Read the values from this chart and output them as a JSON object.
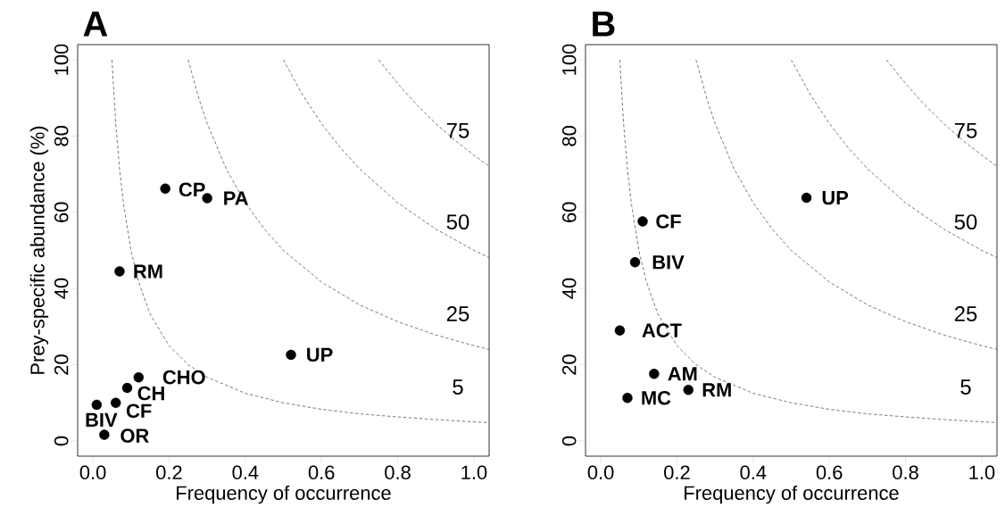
{
  "chart_data": [
    {
      "type": "scatter",
      "title": "A",
      "xlabel": "Frequency of occurrence",
      "ylabel": "Prey-specific abundance (%)",
      "xlim": [
        -0.04,
        1.04
      ],
      "ylim": [
        -4,
        104
      ],
      "xticks": [
        {
          "value": 0,
          "label": "0.0"
        },
        {
          "value": 0.2,
          "label": "0.2"
        },
        {
          "value": 0.4,
          "label": "0.4"
        },
        {
          "value": 0.6,
          "label": "0.6"
        },
        {
          "value": 0.8,
          "label": "0.8"
        },
        {
          "value": 1,
          "label": "1.0"
        }
      ],
      "yticks": [
        0,
        20,
        40,
        60,
        80,
        100
      ],
      "series": [
        {
          "name": "5",
          "type": "line",
          "line_style": "dashed",
          "color": "#404040",
          "x": [
            0.05,
            0.06,
            0.07,
            0.08,
            0.1,
            0.12,
            0.15,
            0.2,
            0.25,
            0.3,
            0.4,
            0.5,
            0.6,
            0.7,
            0.8,
            0.9,
            1.0,
            1.04
          ],
          "values": [
            100,
            83.3,
            71.4,
            62.5,
            50,
            41.7,
            33.3,
            25,
            20,
            16.7,
            12.5,
            10,
            8.3,
            7.1,
            6.3,
            5.6,
            5,
            4.8
          ]
        },
        {
          "name": "25",
          "type": "line",
          "line_style": "dashed",
          "color": "#404040",
          "x": [
            0.25,
            0.28,
            0.3,
            0.35,
            0.4,
            0.45,
            0.5,
            0.6,
            0.7,
            0.8,
            0.9,
            1.0,
            1.04
          ],
          "values": [
            100,
            89.3,
            83.3,
            71.4,
            62.5,
            55.6,
            50,
            41.7,
            35.7,
            31.3,
            27.8,
            25,
            24.0
          ]
        },
        {
          "name": "50",
          "type": "line",
          "line_style": "dashed",
          "color": "#404040",
          "x": [
            0.5,
            0.55,
            0.6,
            0.65,
            0.7,
            0.8,
            0.9,
            1.0,
            1.04
          ],
          "values": [
            100,
            90.9,
            83.3,
            76.9,
            71.4,
            62.5,
            55.6,
            50,
            48.1
          ]
        },
        {
          "name": "75",
          "type": "line",
          "line_style": "dashed",
          "color": "#404040",
          "x": [
            0.75,
            0.8,
            0.85,
            0.9,
            0.95,
            1.0,
            1.04
          ],
          "values": [
            100,
            93.8,
            88.2,
            83.3,
            78.9,
            75,
            72.1
          ]
        },
        {
          "marker": "circle",
          "color": "#000000",
          "x": [
            0.19,
            0.3,
            0.07,
            0.52,
            0.12,
            0.09,
            0.06,
            0.01,
            0.03
          ],
          "values": [
            66.2,
            63.7,
            44.5,
            22.6,
            16.7,
            13.9,
            10.0,
            9.5,
            1.6
          ]
        }
      ],
      "annotations": [
        {
          "text": "CP",
          "x": 0.19,
          "y": 66.2
        },
        {
          "text": "PA",
          "x": 0.3,
          "y": 63.7
        },
        {
          "text": "RM",
          "x": 0.07,
          "y": 44.5
        },
        {
          "text": "UP",
          "x": 0.52,
          "y": 22.6
        },
        {
          "text": "CHO",
          "x": 0.12,
          "y": 16.7
        },
        {
          "text": "CH",
          "x": 0.09,
          "y": 13.9
        },
        {
          "text": "CF",
          "x": 0.06,
          "y": 10.0
        },
        {
          "text": "BIV",
          "x": 0.01,
          "y": 9.5
        },
        {
          "text": "OR",
          "x": 0.03,
          "y": 1.6
        }
      ]
    },
    {
      "type": "scatter",
      "title": "B",
      "xlabel": "Frequency of occurrence",
      "xlim": [
        -0.04,
        1.04
      ],
      "ylim": [
        -4,
        104
      ],
      "xticks": [
        {
          "value": 0,
          "label": "0.0"
        },
        {
          "value": 0.2,
          "label": "0.2"
        },
        {
          "value": 0.4,
          "label": "0.4"
        },
        {
          "value": 0.6,
          "label": "0.6"
        },
        {
          "value": 0.8,
          "label": "0.8"
        },
        {
          "value": 1,
          "label": "1.0"
        }
      ],
      "yticks": [
        0,
        20,
        40,
        60,
        80,
        100
      ],
      "series": [
        {
          "name": "5",
          "type": "line",
          "line_style": "dashed",
          "color": "#404040",
          "x": [
            0.05,
            0.06,
            0.07,
            0.08,
            0.1,
            0.12,
            0.15,
            0.2,
            0.25,
            0.3,
            0.4,
            0.5,
            0.6,
            0.7,
            0.8,
            0.9,
            1.0,
            1.04
          ],
          "values": [
            100,
            83.3,
            71.4,
            62.5,
            50,
            41.7,
            33.3,
            25,
            20,
            16.7,
            12.5,
            10,
            8.3,
            7.1,
            6.3,
            5.6,
            5,
            4.8
          ]
        },
        {
          "name": "25",
          "type": "line",
          "line_style": "dashed",
          "color": "#404040",
          "x": [
            0.25,
            0.28,
            0.3,
            0.35,
            0.4,
            0.45,
            0.5,
            0.6,
            0.7,
            0.8,
            0.9,
            1.0,
            1.04
          ],
          "values": [
            100,
            89.3,
            83.3,
            71.4,
            62.5,
            55.6,
            50,
            41.7,
            35.7,
            31.3,
            27.8,
            25,
            24.0
          ]
        },
        {
          "name": "50",
          "type": "line",
          "line_style": "dashed",
          "color": "#404040",
          "x": [
            0.5,
            0.55,
            0.6,
            0.65,
            0.7,
            0.8,
            0.9,
            1.0,
            1.04
          ],
          "values": [
            100,
            90.9,
            83.3,
            76.9,
            71.4,
            62.5,
            55.6,
            50,
            48.1
          ]
        },
        {
          "name": "75",
          "type": "line",
          "line_style": "dashed",
          "color": "#404040",
          "x": [
            0.75,
            0.8,
            0.85,
            0.9,
            0.95,
            1.0,
            1.04
          ],
          "values": [
            100,
            93.8,
            88.2,
            83.3,
            78.9,
            75,
            72.1
          ]
        },
        {
          "marker": "circle",
          "color": "#000000",
          "x": [
            0.54,
            0.11,
            0.09,
            0.05,
            0.14,
            0.23,
            0.07
          ],
          "values": [
            63.8,
            57.6,
            46.9,
            29.0,
            17.6,
            13.4,
            11.3
          ]
        }
      ],
      "annotations": [
        {
          "text": "UP",
          "x": 0.54,
          "y": 63.8
        },
        {
          "text": "CF",
          "x": 0.11,
          "y": 57.6
        },
        {
          "text": "BIV",
          "x": 0.09,
          "y": 46.9
        },
        {
          "text": "ACT",
          "x": 0.05,
          "y": 29.0
        },
        {
          "text": "AM",
          "x": 0.14,
          "y": 17.6
        },
        {
          "text": "RM",
          "x": 0.23,
          "y": 13.4
        },
        {
          "text": "MC",
          "x": 0.07,
          "y": 11.3
        }
      ]
    }
  ]
}
